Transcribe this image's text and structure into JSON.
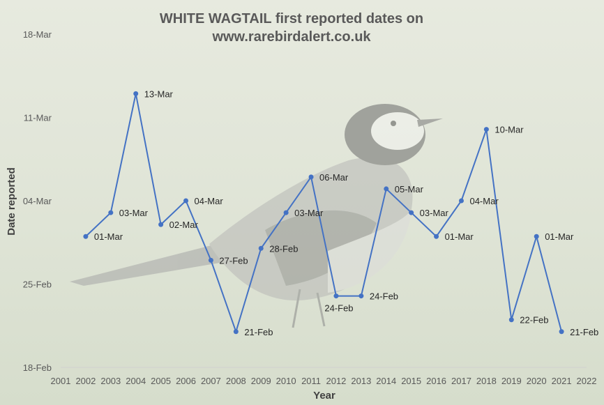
{
  "chart_data": {
    "type": "line",
    "title_line1": "WHITE WAGTAIL first reported dates on",
    "title_line2": "www.rarebirdalert.co.uk",
    "xlabel": "Year",
    "ylabel": "Date reported",
    "x_ticks": [
      "2001",
      "2002",
      "2003",
      "2004",
      "2005",
      "2006",
      "2007",
      "2008",
      "2009",
      "2010",
      "2011",
      "2012",
      "2013",
      "2014",
      "2015",
      "2016",
      "2017",
      "2018",
      "2019",
      "2020",
      "2021",
      "2022"
    ],
    "y_ticks": [
      "18-Feb",
      "25-Feb",
      "04-Mar",
      "11-Mar",
      "18-Mar"
    ],
    "xlim": [
      2001,
      2022
    ],
    "ylim_day_of_year": [
      49,
      77
    ],
    "y_tick_days": [
      49,
      56,
      63,
      70,
      77
    ],
    "grid": false,
    "series_color": "#4472C4",
    "points": [
      {
        "year": 2002,
        "date": "01-Mar",
        "day": 60
      },
      {
        "year": 2003,
        "date": "03-Mar",
        "day": 62
      },
      {
        "year": 2004,
        "date": "13-Mar",
        "day": 72
      },
      {
        "year": 2005,
        "date": "02-Mar",
        "day": 61
      },
      {
        "year": 2006,
        "date": "04-Mar",
        "day": 63
      },
      {
        "year": 2007,
        "date": "27-Feb",
        "day": 58
      },
      {
        "year": 2008,
        "date": "21-Feb",
        "day": 52
      },
      {
        "year": 2009,
        "date": "28-Feb",
        "day": 59
      },
      {
        "year": 2010,
        "date": "03-Mar",
        "day": 62
      },
      {
        "year": 2011,
        "date": "06-Mar",
        "day": 65
      },
      {
        "year": 2012,
        "date": "24-Feb",
        "day": 55
      },
      {
        "year": 2013,
        "date": "24-Feb",
        "day": 55
      },
      {
        "year": 2014,
        "date": "05-Mar",
        "day": 64
      },
      {
        "year": 2015,
        "date": "03-Mar",
        "day": 62
      },
      {
        "year": 2016,
        "date": "01-Mar",
        "day": 60
      },
      {
        "year": 2017,
        "date": "04-Mar",
        "day": 63
      },
      {
        "year": 2018,
        "date": "10-Mar",
        "day": 69
      },
      {
        "year": 2019,
        "date": "22-Feb",
        "day": 53
      },
      {
        "year": 2020,
        "date": "01-Mar",
        "day": 60
      },
      {
        "year": 2021,
        "date": "21-Feb",
        "day": 52
      }
    ]
  }
}
